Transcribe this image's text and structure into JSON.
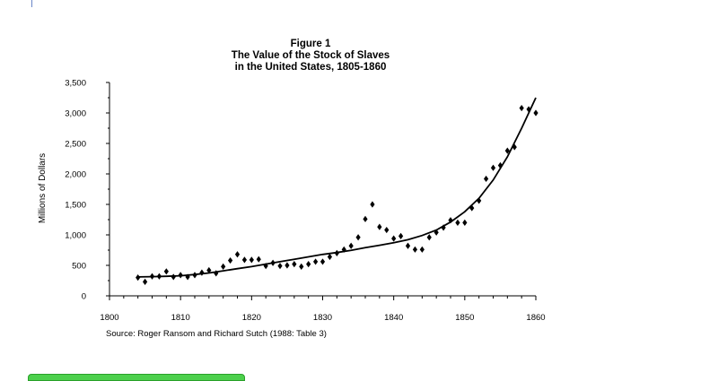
{
  "colors": {
    "ink": "#000000",
    "bar_accent": "#4cd04c"
  },
  "chart_data": {
    "type": "scatter",
    "title": [
      "Figure 1",
      "The Value of the Stock of Slaves",
      "in the United States, 1805-1860"
    ],
    "xlabel": "",
    "ylabel": "Millions of Dollars",
    "source": "Source: Roger Ransom and Richard Sutch (1988: Table 3)",
    "xlim": [
      1800,
      1860
    ],
    "ylim": [
      0,
      3500
    ],
    "x_ticks": [
      1800,
      1810,
      1820,
      1830,
      1840,
      1850,
      1860
    ],
    "x_tick_labels": [
      "1800",
      "1810",
      "1820",
      "1830",
      "1840",
      "1850",
      "1860"
    ],
    "y_ticks": [
      0,
      500,
      1000,
      1500,
      2000,
      2500,
      3000,
      3500
    ],
    "y_tick_labels": [
      "0",
      "500",
      "1,000",
      "1,500",
      "2,000",
      "2,500",
      "3,000",
      "3,500"
    ],
    "grid": false,
    "legend": "none",
    "series": [
      {
        "type": "scatter",
        "marker": "diamond",
        "x": [
          1804,
          1805,
          1806,
          1807,
          1808,
          1809,
          1810,
          1811,
          1812,
          1813,
          1814,
          1815,
          1816,
          1817,
          1818,
          1819,
          1820,
          1821,
          1822,
          1823,
          1824,
          1825,
          1826,
          1827,
          1828,
          1829,
          1830,
          1831,
          1832,
          1833,
          1834,
          1835,
          1836,
          1837,
          1838,
          1839,
          1840,
          1841,
          1842,
          1843,
          1844,
          1845,
          1846,
          1847,
          1848,
          1849,
          1850,
          1851,
          1852,
          1853,
          1854,
          1855,
          1856,
          1857,
          1858,
          1859,
          1860
        ],
        "y": [
          300,
          230,
          320,
          320,
          400,
          310,
          340,
          310,
          340,
          380,
          420,
          370,
          480,
          580,
          680,
          590,
          590,
          600,
          490,
          540,
          490,
          500,
          520,
          480,
          520,
          560,
          560,
          640,
          700,
          760,
          820,
          960,
          1260,
          1500,
          1130,
          1080,
          940,
          980,
          820,
          760,
          760,
          960,
          1040,
          1120,
          1240,
          1200,
          1200,
          1440,
          1560,
          1920,
          2100,
          2140,
          2380,
          2440,
          3080,
          3060,
          3000
        ]
      },
      {
        "type": "line",
        "x": [
          1804,
          1806,
          1808,
          1810,
          1812,
          1814,
          1816,
          1818,
          1820,
          1822,
          1824,
          1826,
          1828,
          1830,
          1832,
          1834,
          1836,
          1838,
          1840,
          1842,
          1844,
          1846,
          1848,
          1850,
          1852,
          1854,
          1856,
          1858,
          1859,
          1860
        ],
        "y": [
          310,
          315,
          320,
          330,
          350,
          375,
          410,
          445,
          480,
          520,
          560,
          600,
          640,
          680,
          710,
          745,
          790,
          830,
          870,
          920,
          990,
          1080,
          1210,
          1380,
          1600,
          1900,
          2280,
          2750,
          3000,
          3250
        ]
      }
    ]
  }
}
